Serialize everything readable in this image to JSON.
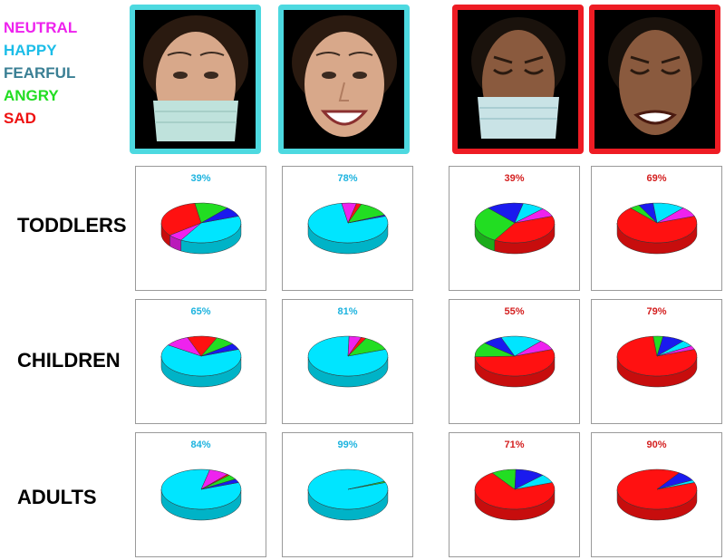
{
  "colors": {
    "neutral": "#ee22ee",
    "happy": "#00e5ff",
    "fearful": "#1a1aee",
    "angry": "#22dd22",
    "sad": "#ff1111",
    "happy_frame": "#4dd9e0",
    "sad_frame": "#ee1c24",
    "happy_text": "#1cb3df",
    "sad_text": "#d42020"
  },
  "legend": [
    {
      "label": "NEUTRAL",
      "key": "neutral",
      "color": "#ee22ee"
    },
    {
      "label": "HAPPY",
      "key": "happy",
      "color": "#1cbde8"
    },
    {
      "label": "FEARFUL",
      "key": "fearful",
      "color": "#3a7f94"
    },
    {
      "label": "ANGRY",
      "key": "angry",
      "color": "#22dd22"
    },
    {
      "label": "SAD",
      "key": "sad",
      "color": "#ee1111"
    }
  ],
  "rows": [
    "TODDLERS",
    "CHILDREN",
    "ADULTS"
  ],
  "columns": [
    {
      "face": "older-woman",
      "expression": "happy",
      "mask": true
    },
    {
      "face": "older-woman",
      "expression": "happy",
      "mask": false
    },
    {
      "face": "young-woman",
      "expression": "sad",
      "mask": true
    },
    {
      "face": "young-woman",
      "expression": "sad",
      "mask": false
    }
  ],
  "chart_data": {
    "type": "pie",
    "categories": [
      "NEUTRAL",
      "HAPPY",
      "FEARFUL",
      "ANGRY",
      "SAD"
    ],
    "pies": [
      {
        "row": "TODDLERS",
        "column": 1,
        "label": "39%",
        "highlight": "happy",
        "slices": [
          {
            "cat": "happy",
            "value": 39
          },
          {
            "cat": "neutral",
            "value": 6
          },
          {
            "cat": "sad",
            "value": 33
          },
          {
            "cat": "angry",
            "value": 14
          },
          {
            "cat": "fearful",
            "value": 8
          }
        ]
      },
      {
        "row": "TODDLERS",
        "column": 2,
        "label": "78%",
        "highlight": "happy",
        "slices": [
          {
            "cat": "happy",
            "value": 78
          },
          {
            "cat": "neutral",
            "value": 6
          },
          {
            "cat": "sad",
            "value": 2
          },
          {
            "cat": "angry",
            "value": 13
          },
          {
            "cat": "fearful",
            "value": 1
          }
        ]
      },
      {
        "row": "TODDLERS",
        "column": 3,
        "label": "39%",
        "highlight": "sad",
        "slices": [
          {
            "cat": "sad",
            "value": 39
          },
          {
            "cat": "angry",
            "value": 30
          },
          {
            "cat": "fearful",
            "value": 15
          },
          {
            "cat": "happy",
            "value": 9
          },
          {
            "cat": "neutral",
            "value": 7
          }
        ]
      },
      {
        "row": "TODDLERS",
        "column": 4,
        "label": "69%",
        "highlight": "sad",
        "slices": [
          {
            "cat": "sad",
            "value": 69
          },
          {
            "cat": "angry",
            "value": 4
          },
          {
            "cat": "fearful",
            "value": 6
          },
          {
            "cat": "happy",
            "value": 13
          },
          {
            "cat": "neutral",
            "value": 8
          }
        ]
      },
      {
        "row": "CHILDREN",
        "column": 1,
        "label": "65%",
        "highlight": "happy",
        "slices": [
          {
            "cat": "happy",
            "value": 65
          },
          {
            "cat": "neutral",
            "value": 10
          },
          {
            "cat": "sad",
            "value": 12
          },
          {
            "cat": "angry",
            "value": 8
          },
          {
            "cat": "fearful",
            "value": 5
          }
        ]
      },
      {
        "row": "CHILDREN",
        "column": 2,
        "label": "81%",
        "highlight": "happy",
        "slices": [
          {
            "cat": "happy",
            "value": 81
          },
          {
            "cat": "neutral",
            "value": 5
          },
          {
            "cat": "sad",
            "value": 2
          },
          {
            "cat": "angry",
            "value": 12
          }
        ]
      },
      {
        "row": "CHILDREN",
        "column": 3,
        "label": "55%",
        "highlight": "sad",
        "slices": [
          {
            "cat": "sad",
            "value": 55
          },
          {
            "cat": "angry",
            "value": 12
          },
          {
            "cat": "fearful",
            "value": 8
          },
          {
            "cat": "happy",
            "value": 17
          },
          {
            "cat": "neutral",
            "value": 8
          }
        ]
      },
      {
        "row": "CHILDREN",
        "column": 4,
        "label": "79%",
        "highlight": "sad",
        "slices": [
          {
            "cat": "sad",
            "value": 79
          },
          {
            "cat": "angry",
            "value": 4
          },
          {
            "cat": "fearful",
            "value": 9
          },
          {
            "cat": "happy",
            "value": 5
          },
          {
            "cat": "neutral",
            "value": 3
          }
        ]
      },
      {
        "row": "ADULTS",
        "column": 1,
        "label": "84%",
        "highlight": "happy",
        "slices": [
          {
            "cat": "happy",
            "value": 84
          },
          {
            "cat": "neutral",
            "value": 8
          },
          {
            "cat": "sad",
            "value": 1
          },
          {
            "cat": "angry",
            "value": 4
          },
          {
            "cat": "fearful",
            "value": 3
          }
        ]
      },
      {
        "row": "ADULTS",
        "column": 2,
        "label": "99%",
        "highlight": "happy",
        "slices": [
          {
            "cat": "happy",
            "value": 99
          },
          {
            "cat": "angry",
            "value": 1
          }
        ]
      },
      {
        "row": "ADULTS",
        "column": 3,
        "label": "71%",
        "highlight": "sad",
        "slices": [
          {
            "cat": "sad",
            "value": 71
          },
          {
            "cat": "angry",
            "value": 10
          },
          {
            "cat": "fearful",
            "value": 12
          },
          {
            "cat": "happy",
            "value": 7
          }
        ]
      },
      {
        "row": "ADULTS",
        "column": 4,
        "label": "90%",
        "highlight": "sad",
        "slices": [
          {
            "cat": "sad",
            "value": 90
          },
          {
            "cat": "fearful",
            "value": 8
          },
          {
            "cat": "happy",
            "value": 2
          }
        ]
      }
    ]
  }
}
